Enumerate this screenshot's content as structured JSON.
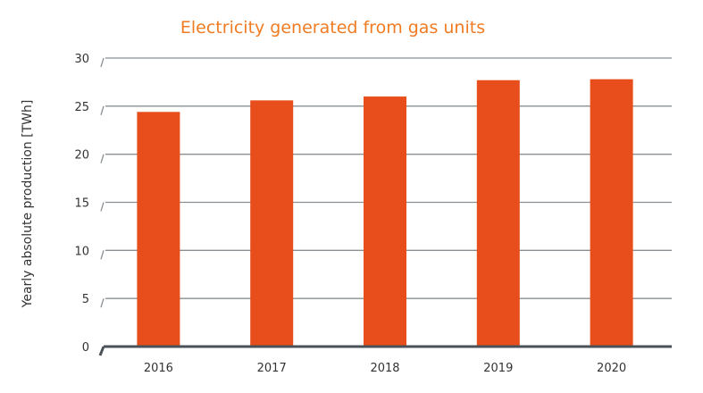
{
  "chart_data": {
    "type": "bar",
    "title": "Electricity generated from gas units",
    "xlabel": "",
    "ylabel": "Yearly absolute production [TWh]",
    "categories": [
      "2016",
      "2017",
      "2018",
      "2019",
      "2020"
    ],
    "values": [
      24.4,
      25.6,
      26.0,
      27.7,
      27.8
    ],
    "ylim": [
      0,
      30
    ],
    "yticks": [
      "0",
      "5",
      "10",
      "15",
      "20",
      "25",
      "30"
    ],
    "grid": true,
    "legend": "none",
    "colors": {
      "bar": "#e84e1b",
      "title": "#f07b22",
      "grid": "#8a8f93",
      "axis": "#4a5258"
    }
  }
}
